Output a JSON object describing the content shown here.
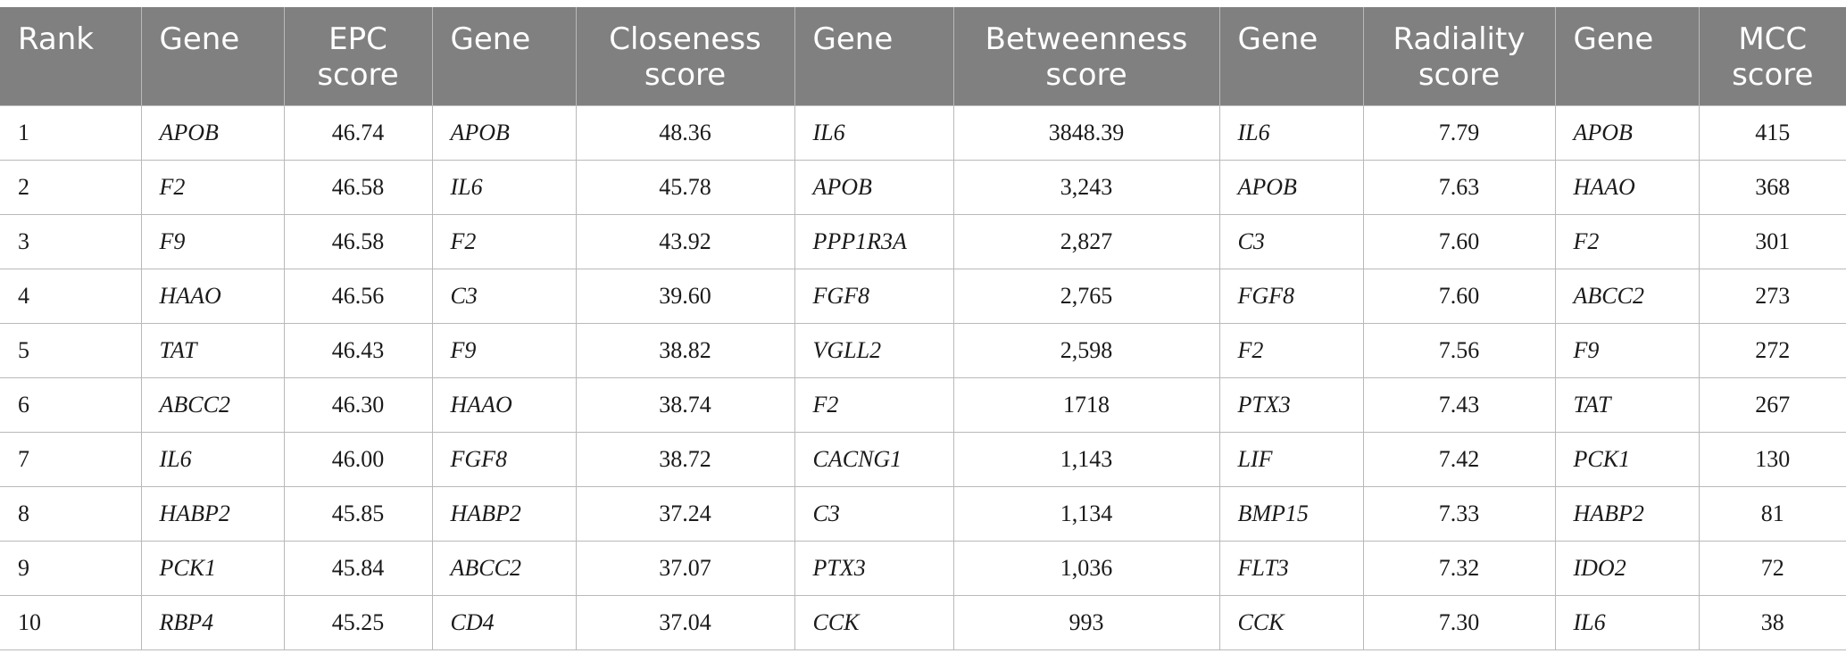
{
  "table": {
    "headers": [
      {
        "line1": "Rank",
        "line2": ""
      },
      {
        "line1": "Gene",
        "line2": ""
      },
      {
        "line1": "EPC",
        "line2": "score"
      },
      {
        "line1": "Gene",
        "line2": ""
      },
      {
        "line1": "Closeness",
        "line2": "score"
      },
      {
        "line1": "Gene",
        "line2": ""
      },
      {
        "line1": "Betweenness",
        "line2": "score"
      },
      {
        "line1": "Gene",
        "line2": ""
      },
      {
        "line1": "Radiality",
        "line2": "score"
      },
      {
        "line1": "Gene",
        "line2": ""
      },
      {
        "line1": "MCC",
        "line2": "score"
      }
    ],
    "rows": [
      [
        "1",
        "APOB",
        "46.74",
        "APOB",
        "48.36",
        "IL6",
        "3848.39",
        "IL6",
        "7.79",
        "APOB",
        "415"
      ],
      [
        "2",
        "F2",
        "46.58",
        "IL6",
        "45.78",
        "APOB",
        "3,243",
        "APOB",
        "7.63",
        "HAAO",
        "368"
      ],
      [
        "3",
        "F9",
        "46.58",
        "F2",
        "43.92",
        "PPP1R3A",
        "2,827",
        "C3",
        "7.60",
        "F2",
        "301"
      ],
      [
        "4",
        "HAAO",
        "46.56",
        "C3",
        "39.60",
        "FGF8",
        "2,765",
        "FGF8",
        "7.60",
        "ABCC2",
        "273"
      ],
      [
        "5",
        "TAT",
        "46.43",
        "F9",
        "38.82",
        "VGLL2",
        "2,598",
        "F2",
        "7.56",
        "F9",
        "272"
      ],
      [
        "6",
        "ABCC2",
        "46.30",
        "HAAO",
        "38.74",
        "F2",
        "1718",
        "PTX3",
        "7.43",
        "TAT",
        "267"
      ],
      [
        "7",
        "IL6",
        "46.00",
        "FGF8",
        "38.72",
        "CACNG1",
        "1,143",
        "LIF",
        "7.42",
        "PCK1",
        "130"
      ],
      [
        "8",
        "HABP2",
        "45.85",
        "HABP2",
        "37.24",
        "C3",
        "1,134",
        "BMP15",
        "7.33",
        "HABP2",
        "81"
      ],
      [
        "9",
        "PCK1",
        "45.84",
        "ABCC2",
        "37.07",
        "PTX3",
        "1,036",
        "FLT3",
        "7.32",
        "IDO2",
        "72"
      ],
      [
        "10",
        "RBP4",
        "45.25",
        "CD4",
        "37.04",
        "CCK",
        "993",
        "CCK",
        "7.30",
        "IL6",
        "38"
      ]
    ]
  }
}
